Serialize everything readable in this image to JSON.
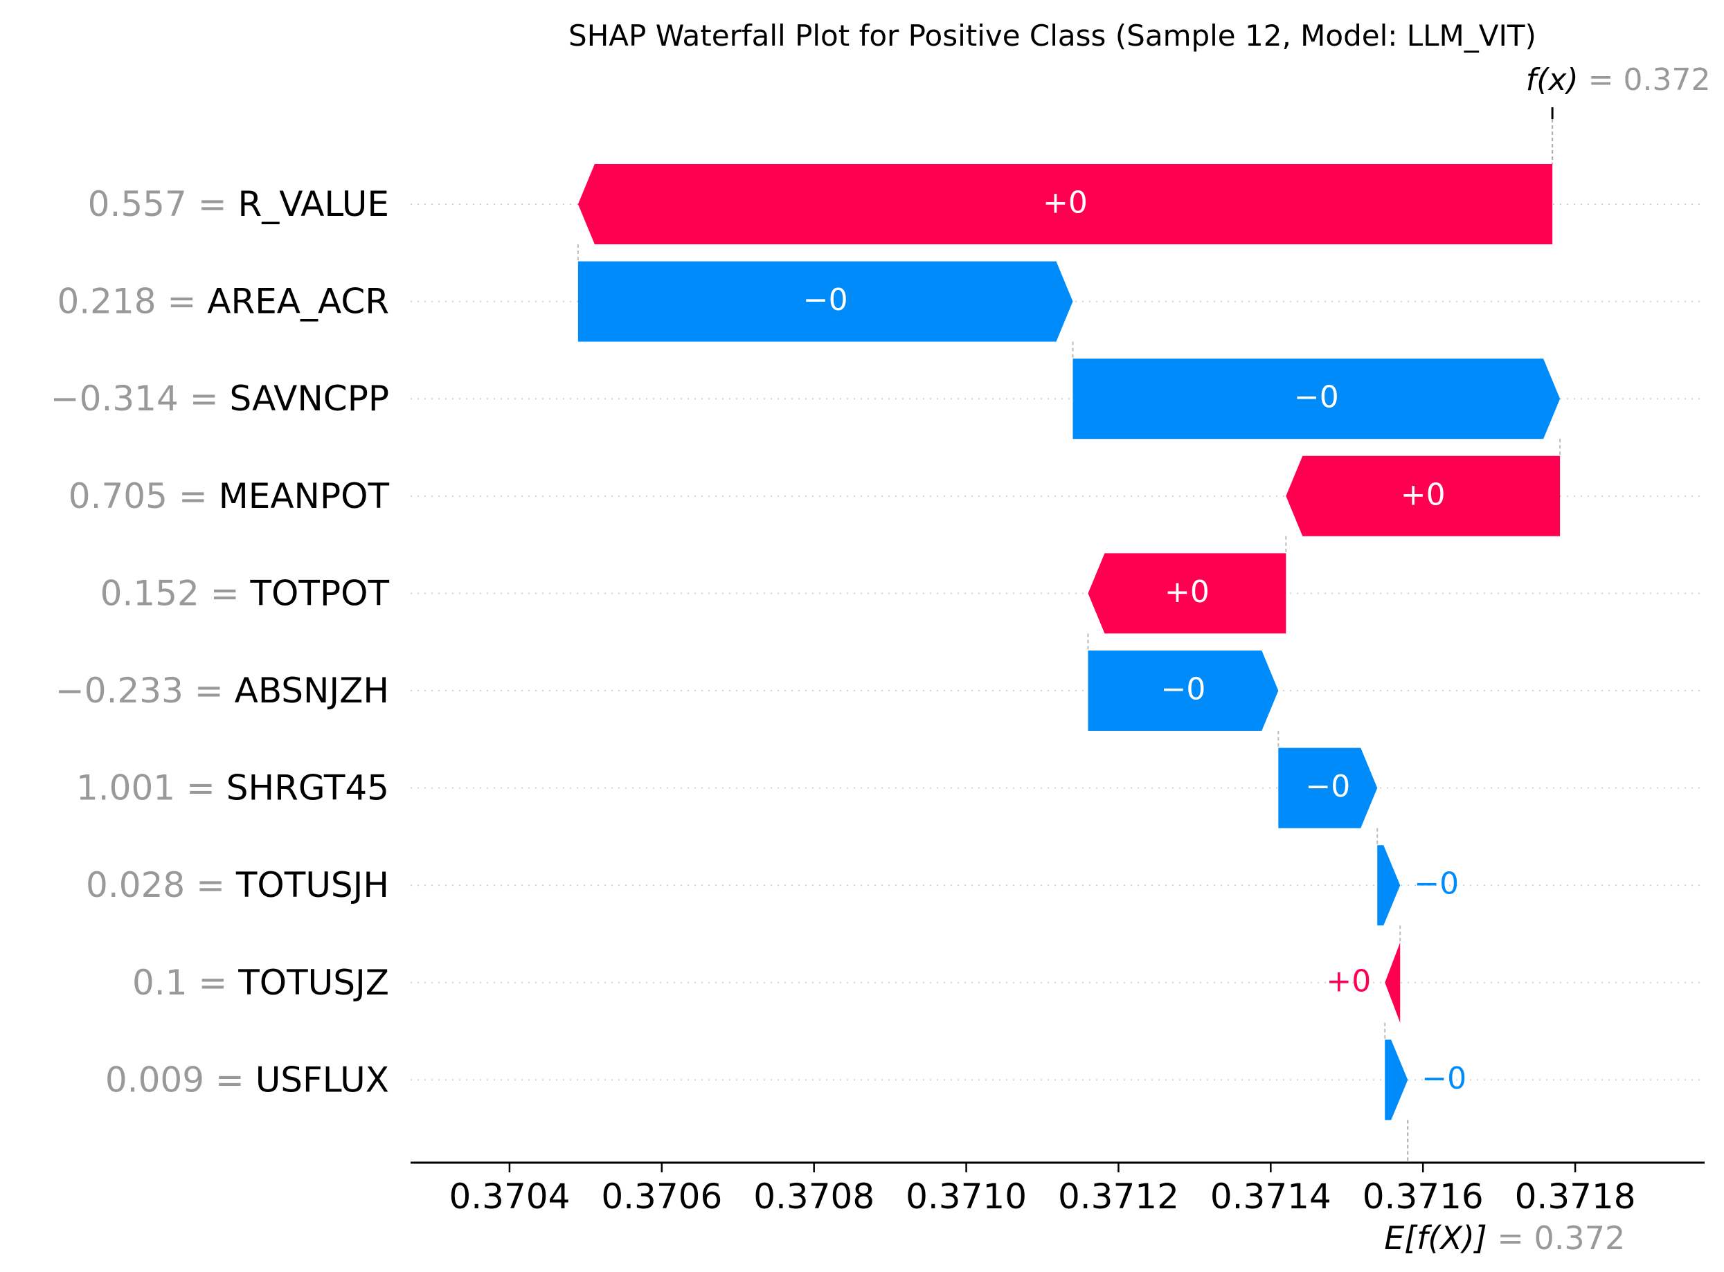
{
  "chart_data": {
    "type": "waterfall",
    "title": "SHAP Waterfall Plot for Positive Class (Sample 12, Model: LLM_VIT)",
    "fx_label": "f(x)",
    "fx_value_text": "0.372",
    "fx_value": 0.37177,
    "efx_label": "E[f(X)]",
    "efx_value_text": "0.372",
    "efx_value": 0.37158,
    "xlim": [
      0.37027,
      0.37197
    ],
    "xticks": [
      0.3704,
      0.3706,
      0.3708,
      0.371,
      0.3712,
      0.3714,
      0.3716,
      0.3718
    ],
    "xtick_labels": [
      "0.3704",
      "0.3706",
      "0.3708",
      "0.3710",
      "0.3712",
      "0.3714",
      "0.3716",
      "0.3718"
    ],
    "grid": "dotted horizontal row lines",
    "colors": {
      "positive": "#ff0051",
      "negative": "#008bfb",
      "feature_value": "#999999",
      "text": "#000000"
    },
    "features": [
      {
        "value_text": "0.557",
        "name": "R_VALUE",
        "start": 0.37177,
        "end": 0.37049,
        "sign": "+",
        "label": "+0"
      },
      {
        "value_text": "0.218",
        "name": "AREA_ACR",
        "start": 0.37049,
        "end": 0.37114,
        "sign": "-",
        "label": "−0"
      },
      {
        "value_text": "−0.314",
        "name": "SAVNCPP",
        "start": 0.37114,
        "end": 0.37178,
        "sign": "-",
        "label": "−0"
      },
      {
        "value_text": "0.705",
        "name": "MEANPOT",
        "start": 0.37178,
        "end": 0.37142,
        "sign": "+",
        "label": "+0"
      },
      {
        "value_text": "0.152",
        "name": "TOTPOT",
        "start": 0.37142,
        "end": 0.37116,
        "sign": "+",
        "label": "+0"
      },
      {
        "value_text": "−0.233",
        "name": "ABSNJZH",
        "start": 0.37116,
        "end": 0.37141,
        "sign": "-",
        "label": "−0"
      },
      {
        "value_text": "1.001",
        "name": "SHRGT45",
        "start": 0.37141,
        "end": 0.37154,
        "sign": "-",
        "label": "−0"
      },
      {
        "value_text": "0.028",
        "name": "TOTUSJH",
        "start": 0.37154,
        "end": 0.37157,
        "sign": "-",
        "label": "−0"
      },
      {
        "value_text": "0.1",
        "name": "TOTUSJZ",
        "start": 0.37157,
        "end": 0.37155,
        "sign": "+",
        "label": "+0"
      },
      {
        "value_text": "0.009",
        "name": "USFLUX",
        "start": 0.37155,
        "end": 0.37158,
        "sign": "-",
        "label": "−0"
      }
    ]
  }
}
